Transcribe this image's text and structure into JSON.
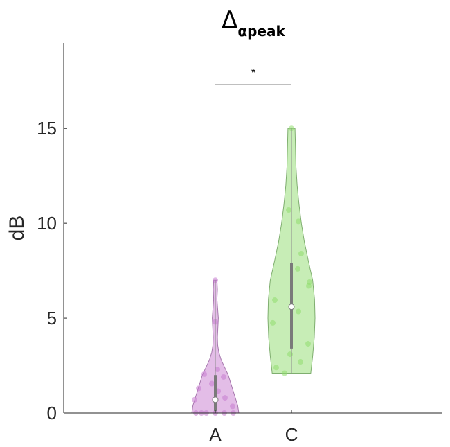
{
  "chart_data": {
    "type": "violin",
    "title": {
      "symbol": "Δ",
      "subscript": "αpeak"
    },
    "ylabel": "dB",
    "xlabel": "",
    "ylim": [
      0,
      19.5
    ],
    "yticks": [
      0,
      5,
      10,
      15
    ],
    "yticklabels": [
      "0",
      "5",
      "10",
      "15"
    ],
    "categories": [
      "A",
      "C"
    ],
    "grid": false,
    "significance": {
      "between": [
        "A",
        "C"
      ],
      "label": "*",
      "y": 17.3
    },
    "series": [
      {
        "category": "A",
        "color": "#c77cd0",
        "edge_color": "#a678ad",
        "median": 0.7,
        "q1": 0.1,
        "q3": 2.0,
        "min": 0,
        "max": 7.0,
        "density": [
          [
            0,
            1.0
          ],
          [
            0.4,
            0.95
          ],
          [
            0.8,
            0.85
          ],
          [
            1.2,
            0.75
          ],
          [
            1.6,
            0.65
          ],
          [
            2.0,
            0.55
          ],
          [
            2.4,
            0.4
          ],
          [
            2.8,
            0.25
          ],
          [
            3.2,
            0.15
          ],
          [
            3.6,
            0.1
          ],
          [
            4.0,
            0.09
          ],
          [
            4.5,
            0.11
          ],
          [
            5.0,
            0.13
          ],
          [
            5.5,
            0.1
          ],
          [
            6.0,
            0.07
          ],
          [
            6.5,
            0.09
          ],
          [
            7.0,
            0.07
          ]
        ],
        "points": [
          {
            "y": 0.0,
            "dx": -0.28
          },
          {
            "y": 0.0,
            "dx": -0.2
          },
          {
            "y": 0.0,
            "dx": -0.13
          },
          {
            "y": 0.0,
            "dx": 0.0
          },
          {
            "y": 0.0,
            "dx": 0.13
          },
          {
            "y": 0.0,
            "dx": 0.26
          },
          {
            "y": 0.35,
            "dx": 0.25
          },
          {
            "y": 0.7,
            "dx": -0.3
          },
          {
            "y": 0.8,
            "dx": 0.14
          },
          {
            "y": 1.15,
            "dx": 0.04
          },
          {
            "y": 1.3,
            "dx": -0.24
          },
          {
            "y": 1.55,
            "dx": -0.05
          },
          {
            "y": 1.9,
            "dx": 0.12
          },
          {
            "y": 2.05,
            "dx": -0.16
          },
          {
            "y": 2.3,
            "dx": 0.03
          },
          {
            "y": 4.8,
            "dx": 0.0
          },
          {
            "y": 7.0,
            "dx": 0.0
          }
        ]
      },
      {
        "category": "C",
        "color": "#8fdc6e",
        "edge_color": "#7fae6f",
        "median": 5.6,
        "q1": 3.4,
        "q3": 7.9,
        "min": 2.1,
        "max": 15.0,
        "density": [
          [
            2.1,
            0.82
          ],
          [
            3.0,
            0.9
          ],
          [
            4.0,
            0.97
          ],
          [
            5.0,
            1.0
          ],
          [
            6.0,
            0.98
          ],
          [
            7.0,
            0.9
          ],
          [
            8.0,
            0.72
          ],
          [
            9.0,
            0.55
          ],
          [
            10.0,
            0.42
          ],
          [
            11.0,
            0.32
          ],
          [
            12.0,
            0.24
          ],
          [
            13.0,
            0.19
          ],
          [
            14.0,
            0.17
          ],
          [
            15.0,
            0.15
          ]
        ],
        "points": [
          {
            "y": 2.1,
            "dx": -0.1
          },
          {
            "y": 2.4,
            "dx": -0.22
          },
          {
            "y": 2.7,
            "dx": 0.13
          },
          {
            "y": 3.1,
            "dx": -0.02
          },
          {
            "y": 3.65,
            "dx": 0.24
          },
          {
            "y": 4.75,
            "dx": -0.27
          },
          {
            "y": 5.35,
            "dx": 0.1
          },
          {
            "y": 5.95,
            "dx": -0.24
          },
          {
            "y": 6.7,
            "dx": 0.25
          },
          {
            "y": 6.9,
            "dx": 0.26
          },
          {
            "y": 7.6,
            "dx": 0.09
          },
          {
            "y": 8.4,
            "dx": 0.14
          },
          {
            "y": 10.1,
            "dx": 0.1
          },
          {
            "y": 10.7,
            "dx": -0.04
          },
          {
            "y": 15.0,
            "dx": 0.0
          }
        ]
      }
    ]
  }
}
